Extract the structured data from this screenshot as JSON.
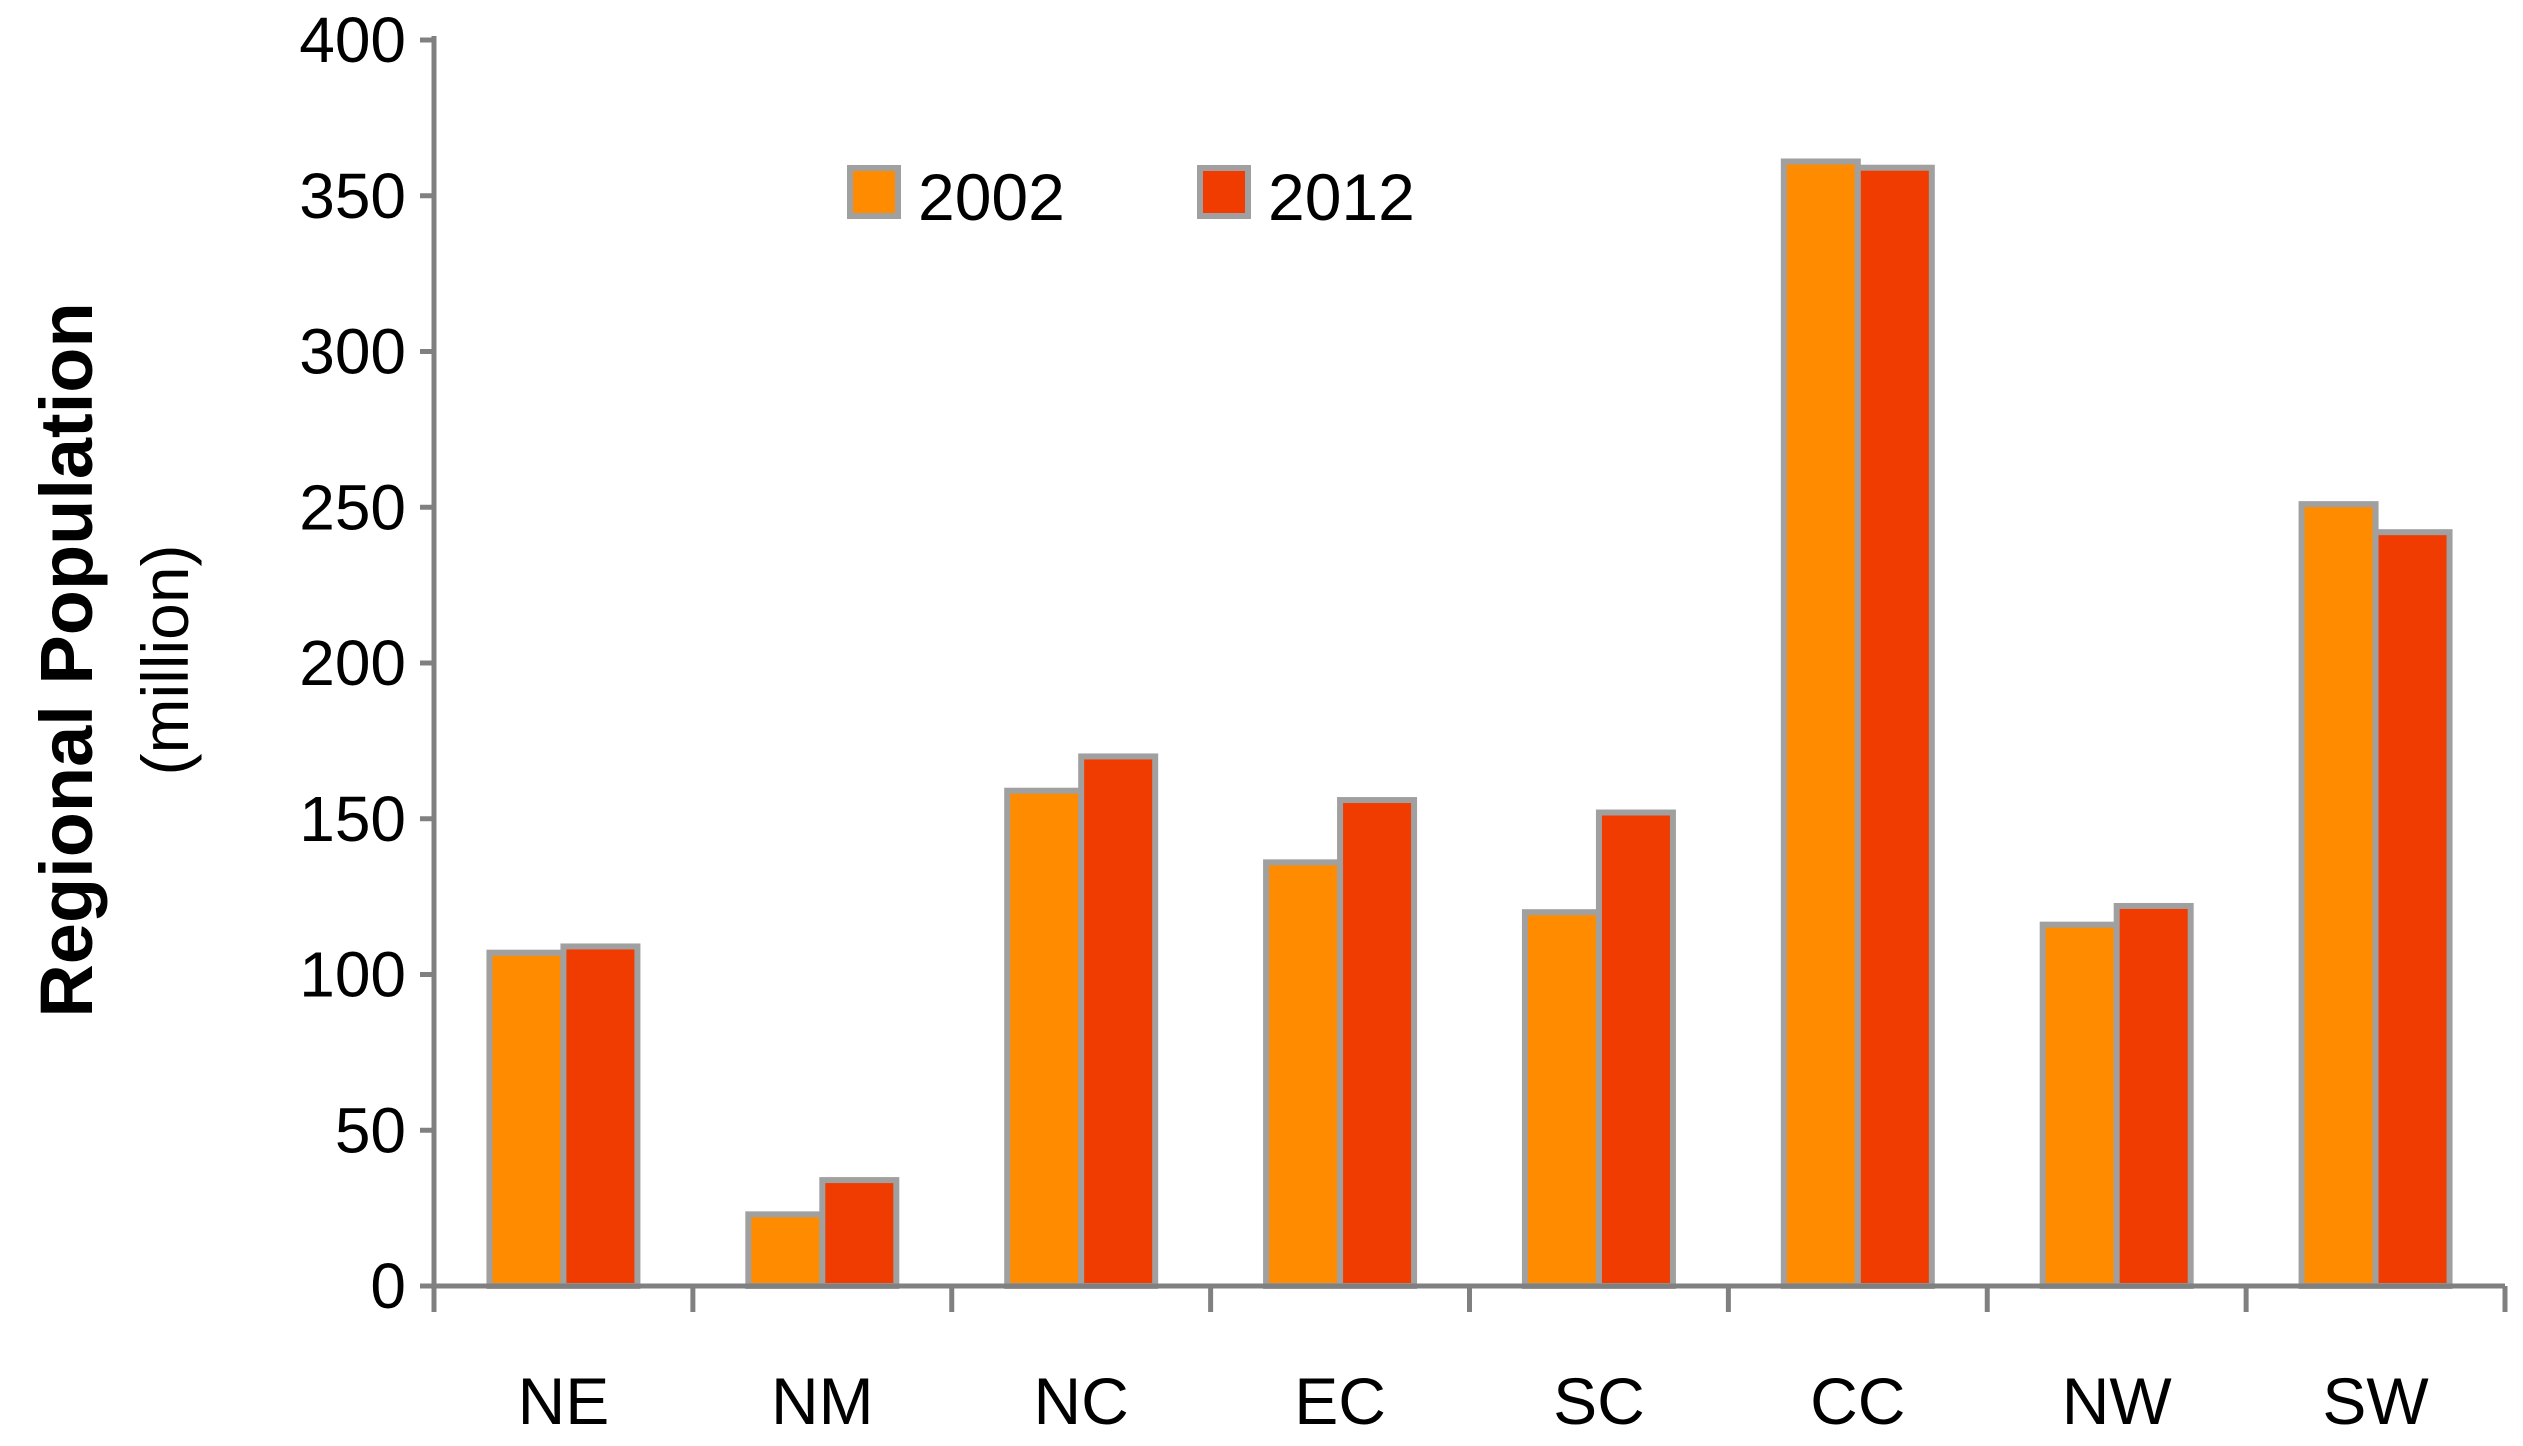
{
  "chart_data": {
    "type": "bar",
    "categories": [
      "NE",
      "NM",
      "NC",
      "EC",
      "SC",
      "CC",
      "NW",
      "SW"
    ],
    "series": [
      {
        "name": "2002",
        "values": [
          107,
          23,
          159,
          136,
          120,
          361,
          116,
          251
        ],
        "color": "#FF8C00"
      },
      {
        "name": "2012",
        "values": [
          109,
          34,
          170,
          156,
          152,
          359,
          122,
          242
        ],
        "color": "#F03C00"
      }
    ],
    "ylabel": "Regional Population",
    "ylabel_unit": "(million)",
    "ylim": [
      0,
      400
    ],
    "yticks": [
      "0",
      "50",
      "100",
      "150",
      "200",
      "250",
      "300",
      "350",
      "400"
    ],
    "grid": false,
    "legend_placement": "top-center",
    "bar_outline_color": "#A0A0A0",
    "axis_color": "#808080"
  }
}
